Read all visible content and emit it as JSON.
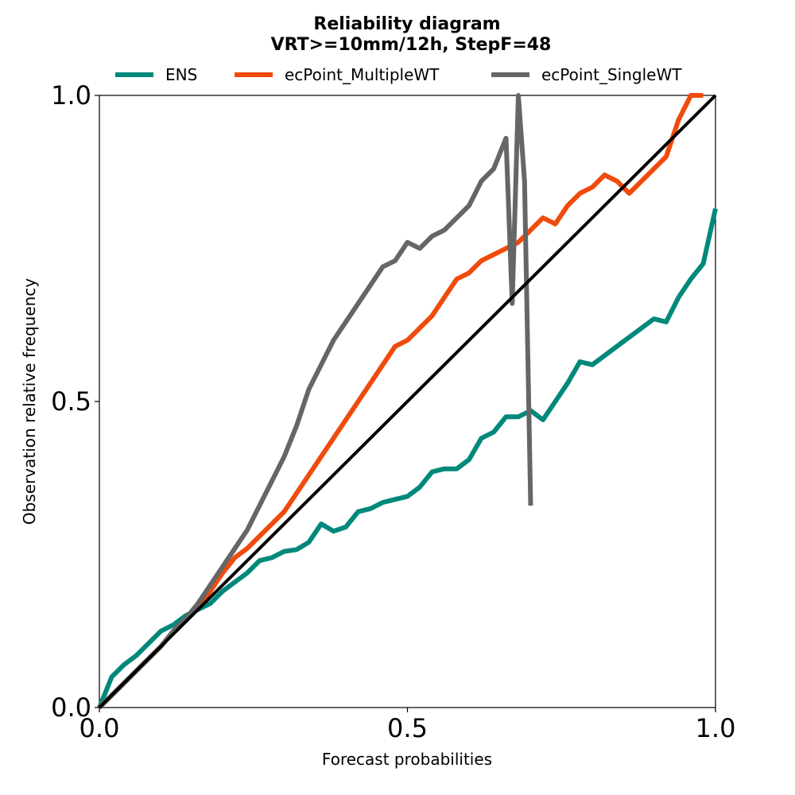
{
  "chart_data": {
    "type": "line",
    "title": "Reliability diagram",
    "subtitle": "VRT>=10mm/12h, StepF=48",
    "xlabel": "Forecast probabilities",
    "ylabel": "Observation relative frequency",
    "xlim": [
      0,
      1
    ],
    "ylim": [
      0,
      1
    ],
    "xticks": [
      "0.0",
      "0.5",
      "1.0"
    ],
    "yticks": [
      "0.0",
      "0.5",
      "1.0"
    ],
    "grid": false,
    "legend_position": "top",
    "diagonal": {
      "name": "perfect-reliability",
      "color": "#000000"
    },
    "series": [
      {
        "name": "ENS",
        "color": "#00897b",
        "points": [
          [
            0,
            0
          ],
          [
            0.02,
            0.05
          ],
          [
            0.04,
            0.07
          ],
          [
            0.06,
            0.085
          ],
          [
            0.08,
            0.105
          ],
          [
            0.1,
            0.125
          ],
          [
            0.12,
            0.135
          ],
          [
            0.14,
            0.15
          ],
          [
            0.16,
            0.16
          ],
          [
            0.18,
            0.17
          ],
          [
            0.2,
            0.19
          ],
          [
            0.22,
            0.205
          ],
          [
            0.24,
            0.22
          ],
          [
            0.26,
            0.24
          ],
          [
            0.28,
            0.245
          ],
          [
            0.3,
            0.255
          ],
          [
            0.32,
            0.258
          ],
          [
            0.34,
            0.27
          ],
          [
            0.36,
            0.3
          ],
          [
            0.38,
            0.288
          ],
          [
            0.4,
            0.295
          ],
          [
            0.42,
            0.32
          ],
          [
            0.44,
            0.325
          ],
          [
            0.46,
            0.335
          ],
          [
            0.48,
            0.34
          ],
          [
            0.5,
            0.345
          ],
          [
            0.52,
            0.36
          ],
          [
            0.54,
            0.385
          ],
          [
            0.56,
            0.39
          ],
          [
            0.58,
            0.39
          ],
          [
            0.6,
            0.405
          ],
          [
            0.62,
            0.44
          ],
          [
            0.64,
            0.45
          ],
          [
            0.66,
            0.475
          ],
          [
            0.68,
            0.475
          ],
          [
            0.7,
            0.485
          ],
          [
            0.72,
            0.47
          ],
          [
            0.74,
            0.5
          ],
          [
            0.76,
            0.53
          ],
          [
            0.78,
            0.565
          ],
          [
            0.8,
            0.56
          ],
          [
            0.82,
            0.575
          ],
          [
            0.84,
            0.59
          ],
          [
            0.86,
            0.605
          ],
          [
            0.88,
            0.62
          ],
          [
            0.9,
            0.635
          ],
          [
            0.92,
            0.63
          ],
          [
            0.94,
            0.67
          ],
          [
            0.96,
            0.7
          ],
          [
            0.98,
            0.725
          ],
          [
            1.0,
            0.815
          ]
        ]
      },
      {
        "name": "ecPoint_MultipleWT",
        "color": "#f04a0c",
        "points": [
          [
            0,
            0
          ],
          [
            0.02,
            0.02
          ],
          [
            0.04,
            0.04
          ],
          [
            0.06,
            0.06
          ],
          [
            0.08,
            0.08
          ],
          [
            0.1,
            0.1
          ],
          [
            0.12,
            0.125
          ],
          [
            0.14,
            0.145
          ],
          [
            0.16,
            0.165
          ],
          [
            0.18,
            0.19
          ],
          [
            0.2,
            0.22
          ],
          [
            0.22,
            0.245
          ],
          [
            0.24,
            0.26
          ],
          [
            0.26,
            0.28
          ],
          [
            0.28,
            0.3
          ],
          [
            0.3,
            0.32
          ],
          [
            0.32,
            0.35
          ],
          [
            0.34,
            0.38
          ],
          [
            0.36,
            0.41
          ],
          [
            0.38,
            0.44
          ],
          [
            0.4,
            0.47
          ],
          [
            0.42,
            0.5
          ],
          [
            0.44,
            0.53
          ],
          [
            0.46,
            0.56
          ],
          [
            0.48,
            0.59
          ],
          [
            0.5,
            0.6
          ],
          [
            0.52,
            0.62
          ],
          [
            0.54,
            0.64
          ],
          [
            0.56,
            0.67
          ],
          [
            0.58,
            0.7
          ],
          [
            0.6,
            0.71
          ],
          [
            0.62,
            0.73
          ],
          [
            0.64,
            0.74
          ],
          [
            0.66,
            0.75
          ],
          [
            0.68,
            0.76
          ],
          [
            0.7,
            0.78
          ],
          [
            0.72,
            0.8
          ],
          [
            0.74,
            0.79
          ],
          [
            0.76,
            0.82
          ],
          [
            0.78,
            0.84
          ],
          [
            0.8,
            0.85
          ],
          [
            0.82,
            0.87
          ],
          [
            0.84,
            0.86
          ],
          [
            0.86,
            0.84
          ],
          [
            0.88,
            0.86
          ],
          [
            0.9,
            0.88
          ],
          [
            0.92,
            0.9
          ],
          [
            0.94,
            0.96
          ],
          [
            0.96,
            1.0
          ],
          [
            0.98,
            1.0
          ]
        ]
      },
      {
        "name": "ecPoint_SingleWT",
        "color": "#666666",
        "points": [
          [
            0,
            0
          ],
          [
            0.02,
            0.02
          ],
          [
            0.04,
            0.04
          ],
          [
            0.06,
            0.06
          ],
          [
            0.08,
            0.08
          ],
          [
            0.1,
            0.1
          ],
          [
            0.12,
            0.125
          ],
          [
            0.14,
            0.145
          ],
          [
            0.16,
            0.17
          ],
          [
            0.18,
            0.2
          ],
          [
            0.2,
            0.23
          ],
          [
            0.22,
            0.26
          ],
          [
            0.24,
            0.29
          ],
          [
            0.26,
            0.33
          ],
          [
            0.28,
            0.37
          ],
          [
            0.3,
            0.41
          ],
          [
            0.32,
            0.46
          ],
          [
            0.34,
            0.52
          ],
          [
            0.36,
            0.56
          ],
          [
            0.38,
            0.6
          ],
          [
            0.4,
            0.63
          ],
          [
            0.42,
            0.66
          ],
          [
            0.44,
            0.69
          ],
          [
            0.46,
            0.72
          ],
          [
            0.48,
            0.73
          ],
          [
            0.5,
            0.76
          ],
          [
            0.52,
            0.75
          ],
          [
            0.54,
            0.77
          ],
          [
            0.56,
            0.78
          ],
          [
            0.58,
            0.8
          ],
          [
            0.6,
            0.82
          ],
          [
            0.62,
            0.86
          ],
          [
            0.64,
            0.88
          ],
          [
            0.66,
            0.93
          ],
          [
            0.67,
            0.66
          ],
          [
            0.68,
            1.0
          ],
          [
            0.69,
            0.86
          ],
          [
            0.7,
            0.33
          ]
        ]
      }
    ]
  }
}
